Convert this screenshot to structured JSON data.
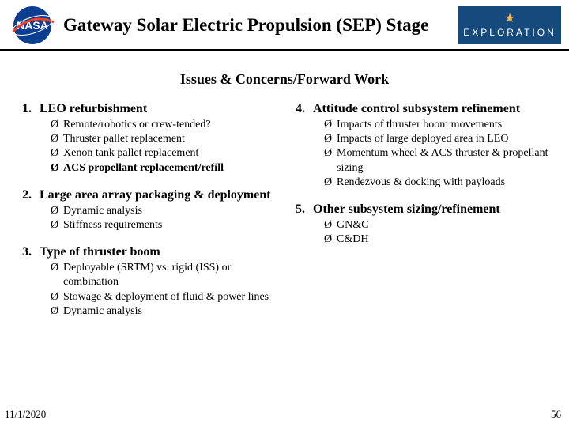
{
  "header": {
    "title": "Gateway Solar Electric Propulsion (SEP) Stage",
    "badge_text": "EXPLORATION"
  },
  "subtitle": "Issues & Concerns/Forward Work",
  "bullet_glyph": "Ø",
  "left": [
    {
      "num": "1.",
      "title": "LEO refurbishment",
      "items": [
        {
          "text": "Remote/robotics or crew-tended?",
          "bold": false
        },
        {
          "text": "Thruster pallet replacement",
          "bold": false
        },
        {
          "text": "Xenon tank pallet replacement",
          "bold": false
        },
        {
          "text": "ACS propellant replacement/refill",
          "bold": true
        }
      ]
    },
    {
      "num": "2.",
      "title": "Large area array packaging & deployment",
      "items": [
        {
          "text": "Dynamic analysis",
          "bold": false
        },
        {
          "text": "Stiffness requirements",
          "bold": false
        }
      ]
    },
    {
      "num": "3.",
      "title": "Type of thruster boom",
      "items": [
        {
          "text": "Deployable (SRTM) vs. rigid (ISS) or combination",
          "bold": false
        },
        {
          "text": "Stowage & deployment of fluid & power lines",
          "bold": false
        },
        {
          "text": "Dynamic analysis",
          "bold": false
        }
      ]
    }
  ],
  "right": [
    {
      "num": "4.",
      "title": "Attitude control subsystem refinement",
      "items": [
        {
          "text": "Impacts of thruster boom movements",
          "bold": false
        },
        {
          "text": "Impacts of large deployed area in LEO",
          "bold": false
        },
        {
          "text": "Momentum wheel & ACS thruster & propellant sizing",
          "bold": false
        },
        {
          "text": "Rendezvous & docking with payloads",
          "bold": false
        }
      ]
    },
    {
      "num": "5.",
      "title": "Other subsystem sizing/refinement",
      "items": [
        {
          "text": "GN&C",
          "bold": false
        },
        {
          "text": "C&DH",
          "bold": false
        }
      ]
    }
  ],
  "footer": {
    "date": "11/1/2020",
    "page": "56"
  },
  "colors": {
    "nasa_blue": "#0b3d91",
    "nasa_red": "#fc3d21",
    "badge_blue": "#174a7c",
    "badge_star": "#f5b841",
    "text": "#000000",
    "bg": "#ffffff"
  },
  "typography": {
    "title_pt": 23,
    "subtitle_pt": 18,
    "section_pt": 16,
    "sub_pt": 14,
    "footer_pt": 13,
    "family": "Times New Roman"
  }
}
